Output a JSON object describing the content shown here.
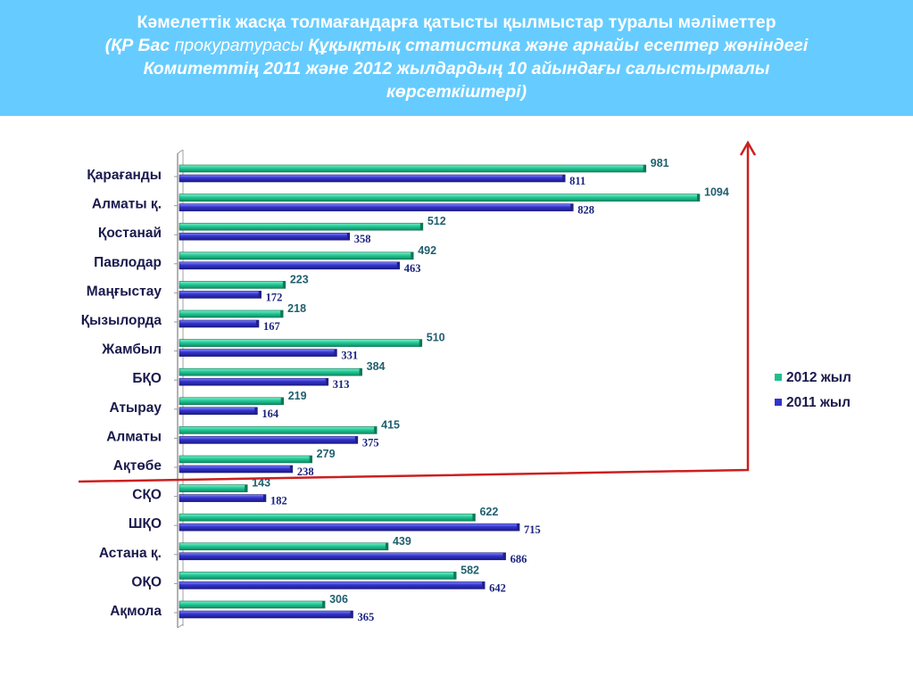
{
  "header": {
    "line1": "Кәмелеттік жасқа толмағандарға қатысты  қылмыстар туралы мәліметтер",
    "line2_a": "(ҚР Бас ",
    "line2_b": "прокуратурасы",
    "line2_c": "  Құқықтық статистика және арнайы есептер жөніндегі",
    "line3": "Комитеттің 2011 және  2012 жылдардың  10 айындағы салыстырмалы",
    "line4": "көрсеткіштері)"
  },
  "colors": {
    "header_bg": "#66ccff",
    "series_2012": "#1fbf8f",
    "series_2011": "#3333cc",
    "label_2012": "#1f5f6f",
    "label_2011": "#1a237e",
    "arrow": "#cc1f1f"
  },
  "chart_data": {
    "type": "bar",
    "orientation": "horizontal",
    "categories": [
      "Қарағанды",
      "Алматы қ.",
      "Қостанай",
      "Павлодар",
      "Маңғыстау",
      "Қызылорда",
      "Жамбыл",
      "БҚО",
      "Атырау",
      "Алматы",
      "Ақтөбе",
      "СҚО",
      "ШҚО",
      "Астана қ.",
      "ОҚО",
      "Ақмола"
    ],
    "series": [
      {
        "name": "2012 жыл",
        "values": [
          981,
          1094,
          512,
          492,
          223,
          218,
          510,
          384,
          219,
          415,
          279,
          143,
          622,
          439,
          582,
          306
        ]
      },
      {
        "name": "2011 жыл",
        "values": [
          811,
          828,
          358,
          463,
          172,
          167,
          331,
          313,
          164,
          375,
          238,
          182,
          715,
          686,
          642,
          365
        ]
      }
    ],
    "xlim": [
      0,
      1100
    ],
    "legend": "right",
    "grid": false
  }
}
